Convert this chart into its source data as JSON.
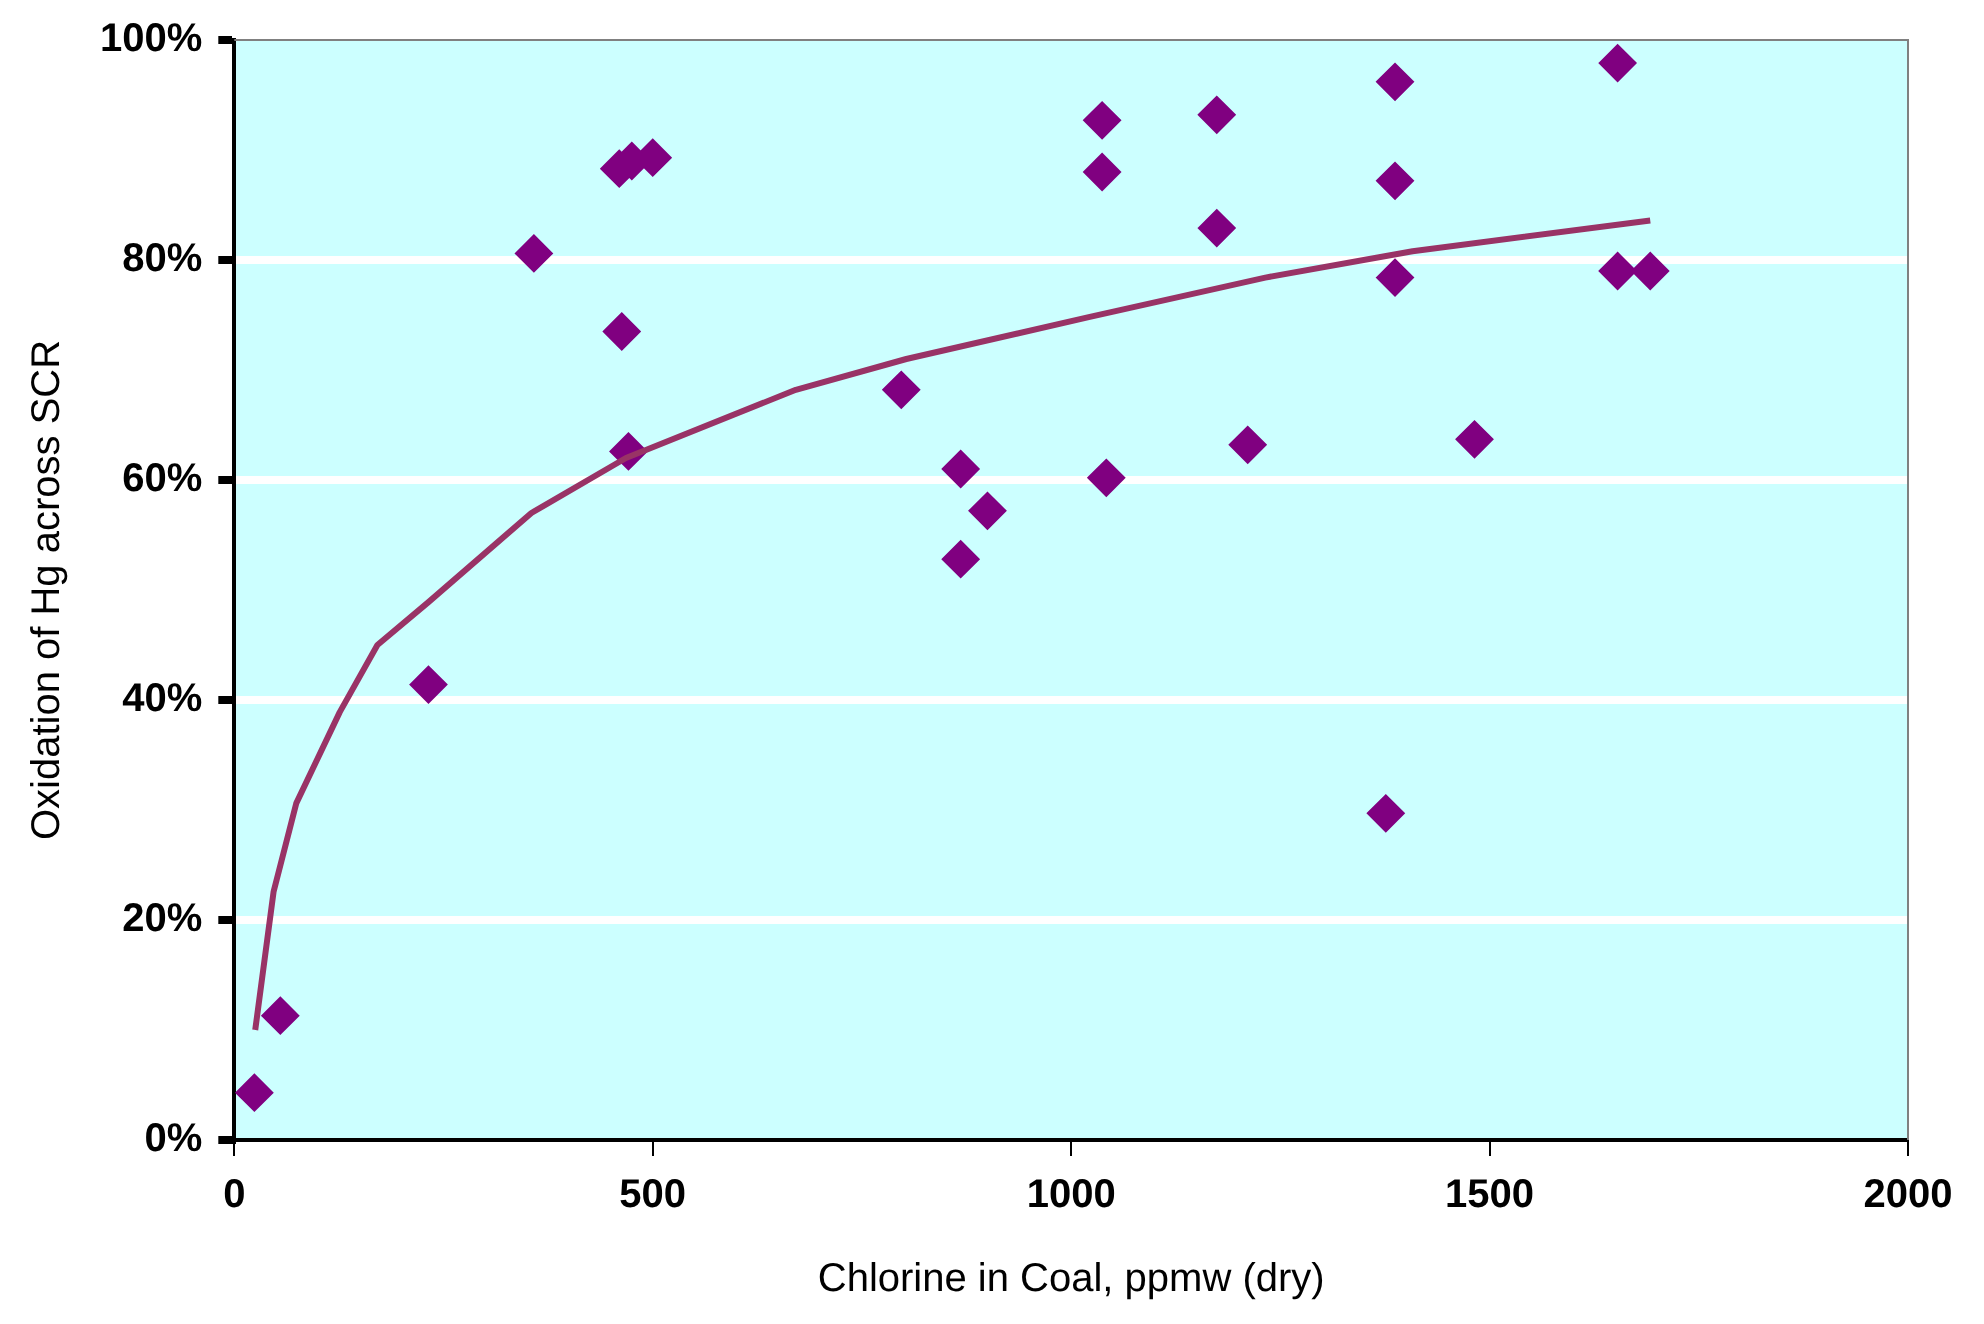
{
  "chart_data": {
    "type": "scatter",
    "xlabel": "Chlorine in Coal, ppmw (dry)",
    "ylabel": "Oxidation of Hg across SCR",
    "series": [
      {
        "type": "scatter",
        "color": "#800080",
        "marker": "diamond",
        "x": [
          24,
          55,
          232,
          358,
          460,
          475,
          500,
          463,
          471,
          797,
          868,
          900,
          868,
          1037,
          1037,
          1174,
          1174,
          1387,
          1387,
          1387,
          1653,
          1653,
          1692,
          1042,
          1211,
          1482,
          1376
        ],
        "values": [
          4.3,
          11.3,
          41.4,
          80.6,
          88.3,
          89,
          89.3,
          73.5,
          62.6,
          68.2,
          61,
          57.2,
          52.8,
          92.7,
          88,
          93.2,
          82.9,
          96.2,
          87.2,
          78.4,
          97.9,
          79,
          79,
          60.2,
          63.2,
          63.7,
          29.7
        ]
      },
      {
        "type": "line",
        "color": "#993366",
        "marker": "none",
        "x": [
          25,
          47,
          74,
          126,
          171,
          232,
          355,
          468,
          671,
          803,
          1021,
          1232,
          1408,
          1692
        ],
        "values": [
          10,
          22.6,
          30.6,
          38.9,
          45,
          48.9,
          57,
          62,
          68.2,
          71,
          74.8,
          78.4,
          80.8,
          83.6
        ]
      }
    ],
    "xlim": [
      0,
      2000
    ],
    "xticks": [
      0,
      500,
      1000,
      1500,
      2000
    ],
    "ylim": [
      0,
      100
    ],
    "yticks": [
      {
        "value": 0,
        "label": "0%"
      },
      {
        "value": 20,
        "label": "20%"
      },
      {
        "value": 40,
        "label": "40%"
      },
      {
        "value": 60,
        "label": "60%"
      },
      {
        "value": 80,
        "label": "80%"
      },
      {
        "value": 100,
        "label": "100%"
      }
    ],
    "grid": "y",
    "legend": false
  }
}
